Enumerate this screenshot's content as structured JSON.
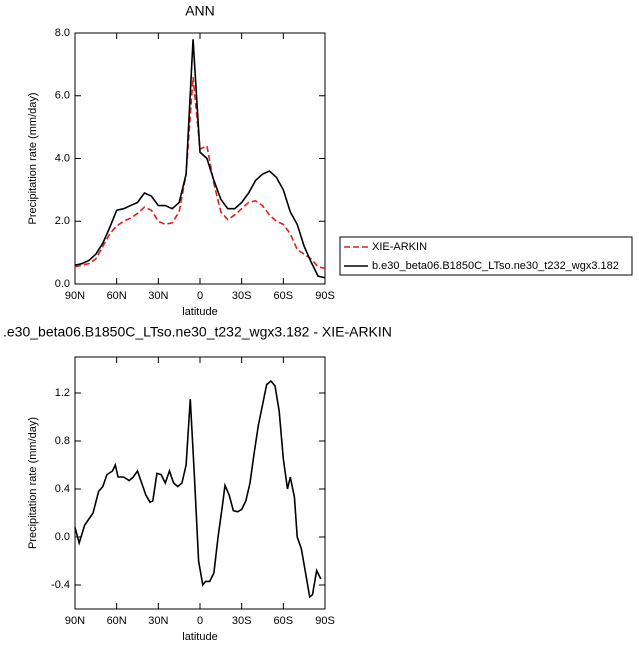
{
  "chart_data": [
    {
      "type": "line",
      "title": "ANN",
      "x_label": "latitude",
      "y_label": "Precipitation rate (mm/day)",
      "x": [
        90,
        85,
        80,
        75,
        70,
        65,
        60,
        55,
        50,
        45,
        40,
        35,
        30,
        25,
        20,
        15,
        10,
        5,
        0,
        -5,
        -10,
        -15,
        -20,
        -25,
        -30,
        -35,
        -40,
        -45,
        -50,
        -55,
        -60,
        -65,
        -70,
        -75,
        -80,
        -85,
        -90
      ],
      "series": [
        {
          "name": "XIE-ARKIN",
          "color": "#e0201b",
          "line_style": "dashed",
          "values": [
            0.55,
            0.6,
            0.65,
            0.8,
            1.2,
            1.6,
            1.85,
            2.0,
            2.1,
            2.25,
            2.45,
            2.35,
            2.0,
            1.9,
            1.95,
            2.3,
            3.5,
            6.6,
            4.3,
            4.4,
            3.2,
            2.3,
            2.05,
            2.2,
            2.4,
            2.6,
            2.65,
            2.5,
            2.2,
            2.0,
            1.9,
            1.6,
            1.1,
            0.95,
            0.8,
            0.55,
            0.5
          ]
        },
        {
          "name": "b.e30_beta06.B1850C_LTso.ne30_t232_wgx3.182",
          "color": "#000000",
          "line_style": "solid",
          "values": [
            0.6,
            0.65,
            0.75,
            0.95,
            1.3,
            1.8,
            2.35,
            2.4,
            2.5,
            2.6,
            2.9,
            2.8,
            2.5,
            2.5,
            2.4,
            2.6,
            3.5,
            7.8,
            4.2,
            4.0,
            3.3,
            2.7,
            2.4,
            2.4,
            2.6,
            2.9,
            3.3,
            3.5,
            3.6,
            3.4,
            3.0,
            2.3,
            1.9,
            1.2,
            0.7,
            0.25,
            0.2
          ]
        }
      ],
      "xlim": [
        90,
        -90
      ],
      "xticks": [
        {
          "value": 90,
          "label": "90N"
        },
        {
          "value": 60,
          "label": "60N"
        },
        {
          "value": 30,
          "label": "30N"
        },
        0,
        {
          "value": -30,
          "label": "30S"
        },
        {
          "value": -60,
          "label": "60S"
        },
        {
          "value": -90,
          "label": "90S"
        }
      ],
      "ylim": [
        0,
        8
      ],
      "yticks": [
        {
          "value": 0,
          "label": "0.0"
        },
        {
          "value": 2,
          "label": "2.0"
        },
        {
          "value": 4,
          "label": "4.0"
        },
        {
          "value": 6,
          "label": "6.0"
        },
        {
          "value": 8,
          "label": "8.0"
        }
      ],
      "legend": "right"
    },
    {
      "type": "line",
      "title": ".e30_beta06.B1850C_LTso.ne30_t232_wgx3.182 - XIE-ARKIN",
      "x_label": "latitude",
      "y_label": "Precipitation rate (mm/day)",
      "x": [
        90,
        87,
        83,
        80,
        77,
        73,
        70,
        67,
        63,
        61,
        59,
        55,
        51,
        48,
        45,
        42,
        39,
        36,
        34,
        31,
        28,
        25,
        22,
        19,
        16,
        13,
        10,
        7,
        4,
        1,
        -2,
        -4,
        -7,
        -10,
        -13,
        -16,
        -18,
        -21,
        -24,
        -27,
        -30,
        -33,
        -36,
        -39,
        -42,
        -45,
        -48,
        -51,
        -54,
        -57,
        -60,
        -63,
        -65,
        -68,
        -70,
        -73,
        -76,
        -79,
        -81,
        -84,
        -87
      ],
      "series": [
        {
          "color": "#000000",
          "line_style": "solid",
          "values": [
            0.08,
            -0.05,
            0.1,
            0.15,
            0.2,
            0.38,
            0.42,
            0.52,
            0.55,
            0.6,
            0.5,
            0.5,
            0.47,
            0.5,
            0.55,
            0.45,
            0.35,
            0.29,
            0.3,
            0.53,
            0.52,
            0.45,
            0.55,
            0.45,
            0.42,
            0.45,
            0.6,
            1.15,
            0.5,
            -0.2,
            -0.4,
            -0.37,
            -0.37,
            -0.3,
            0.0,
            0.25,
            0.43,
            0.35,
            0.22,
            0.21,
            0.23,
            0.3,
            0.45,
            0.7,
            0.93,
            1.1,
            1.27,
            1.3,
            1.26,
            1.05,
            0.65,
            0.4,
            0.5,
            0.33,
            0.0,
            -0.1,
            -0.3,
            -0.5,
            -0.48,
            -0.28,
            -0.35
          ]
        }
      ],
      "xlim": [
        90,
        -90
      ],
      "xticks": [
        {
          "value": 90,
          "label": "90N"
        },
        {
          "value": 60,
          "label": "60N"
        },
        {
          "value": 30,
          "label": "30N"
        },
        0,
        {
          "value": -30,
          "label": "30S"
        },
        {
          "value": -60,
          "label": "60S"
        },
        {
          "value": -90,
          "label": "90S"
        }
      ],
      "ylim": [
        -0.6,
        1.5
      ],
      "yticks": [
        {
          "value": -0.4,
          "label": "-0.4"
        },
        {
          "value": 0,
          "label": "0.0"
        },
        0.4,
        0.8,
        1.2
      ]
    }
  ]
}
